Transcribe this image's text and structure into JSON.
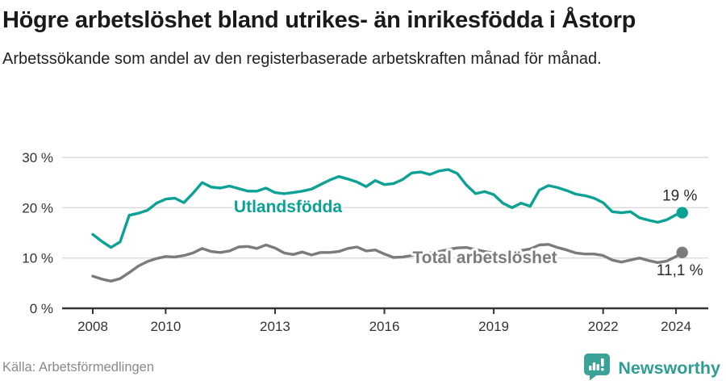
{
  "header": {
    "title": "Högre arbetslöshet bland utrikes- än inrikesfödda i Åstorp",
    "subtitle": "Arbetssökande som andel av den registerbaserade arbetskraften månad för månad."
  },
  "footer": {
    "source": "Källa: Arbetsförmedlingen",
    "brand": "Newsworthy",
    "brand_icon": "newsworthy-speech-bubble-bar-chart-icon"
  },
  "colors": {
    "foreign_born_line": "#0ba295",
    "total_line": "#7b7b7b",
    "grid": "#d9d9d9",
    "axis": "#333333",
    "tick_text": "#333333",
    "value_label_text": "#2b2b2b",
    "brand_teal": "#2f9d92",
    "source_text": "#8a8a8a"
  },
  "chart_data": {
    "type": "line",
    "title": "Högre arbetslöshet bland utrikes- än inrikesfödda i Åstorp",
    "subtitle": "Arbetssökande som andel av den registerbaserade arbetskraften månad för månad.",
    "source": "Källa: Arbetsförmedlingen",
    "xlabel": "",
    "ylabel": "",
    "ylim": [
      0,
      32
    ],
    "xlim": [
      2007.2,
      2024.9
    ],
    "grid": "horizontal",
    "legend_position": "inline-labels",
    "x_ticks": {
      "values": [
        2008,
        2010,
        2013,
        2016,
        2019,
        2022,
        2024
      ],
      "labels": [
        "2008",
        "2010",
        "2013",
        "2016",
        "2019",
        "2022",
        "2024"
      ]
    },
    "y_ticks": {
      "values": [
        0,
        10,
        20,
        30
      ],
      "labels": [
        "0 %",
        "10 %",
        "20 %",
        "30 %"
      ]
    },
    "x": [
      2008,
      2008.25,
      2008.5,
      2008.75,
      2009,
      2009.25,
      2009.5,
      2009.75,
      2010,
      2010.25,
      2010.5,
      2010.75,
      2011,
      2011.25,
      2011.5,
      2011.75,
      2012,
      2012.25,
      2012.5,
      2012.75,
      2013,
      2013.25,
      2013.5,
      2013.75,
      2014,
      2014.25,
      2014.5,
      2014.75,
      2015,
      2015.25,
      2015.5,
      2015.75,
      2016,
      2016.25,
      2016.5,
      2016.75,
      2017,
      2017.25,
      2017.5,
      2017.75,
      2018,
      2018.25,
      2018.5,
      2018.75,
      2019,
      2019.25,
      2019.5,
      2019.75,
      2020,
      2020.25,
      2020.5,
      2020.75,
      2021,
      2021.25,
      2021.5,
      2021.75,
      2022,
      2022.25,
      2022.5,
      2022.75,
      2023,
      2023.25,
      2023.5,
      2023.75,
      2024,
      2024.17
    ],
    "series": [
      {
        "name": "Utlandsfödda",
        "color": "#0ba295",
        "end_label": "19 %",
        "end_value": 19.0,
        "values": [
          14.7,
          13.3,
          12.1,
          13.2,
          18.5,
          18.9,
          19.5,
          20.9,
          21.7,
          21.9,
          21.0,
          22.9,
          25.0,
          24.1,
          23.9,
          24.3,
          23.8,
          23.3,
          23.3,
          23.9,
          23.0,
          22.8,
          23.0,
          23.3,
          23.7,
          24.6,
          25.5,
          26.2,
          25.7,
          25.1,
          24.2,
          25.4,
          24.6,
          24.8,
          25.6,
          26.9,
          27.1,
          26.6,
          27.3,
          27.6,
          26.8,
          24.5,
          22.8,
          23.2,
          22.6,
          20.9,
          20.0,
          20.9,
          20.3,
          23.5,
          24.4,
          24.0,
          23.4,
          22.7,
          22.4,
          21.9,
          21.0,
          19.2,
          19.0,
          19.2,
          18.0,
          17.5,
          17.1,
          17.6,
          18.6,
          19.0
        ]
      },
      {
        "name": "Total arbetslöshet",
        "color": "#7b7b7b",
        "end_label": "11,1 %",
        "end_value": 11.1,
        "values": [
          6.4,
          5.8,
          5.4,
          5.9,
          7.1,
          8.4,
          9.3,
          9.9,
          10.3,
          10.2,
          10.5,
          11.0,
          11.9,
          11.3,
          11.1,
          11.4,
          12.2,
          12.3,
          11.9,
          12.6,
          12.0,
          11.0,
          10.7,
          11.2,
          10.6,
          11.1,
          11.1,
          11.3,
          11.9,
          12.2,
          11.4,
          11.6,
          10.8,
          10.1,
          10.2,
          10.5,
          10.8,
          11.0,
          11.3,
          11.7,
          12.0,
          12.1,
          11.7,
          11.3,
          11.0,
          10.9,
          11.1,
          11.5,
          11.8,
          12.6,
          12.7,
          12.1,
          11.6,
          11.0,
          10.8,
          10.8,
          10.5,
          9.6,
          9.2,
          9.6,
          10.0,
          9.5,
          9.1,
          9.4,
          10.3,
          11.1
        ]
      }
    ]
  }
}
